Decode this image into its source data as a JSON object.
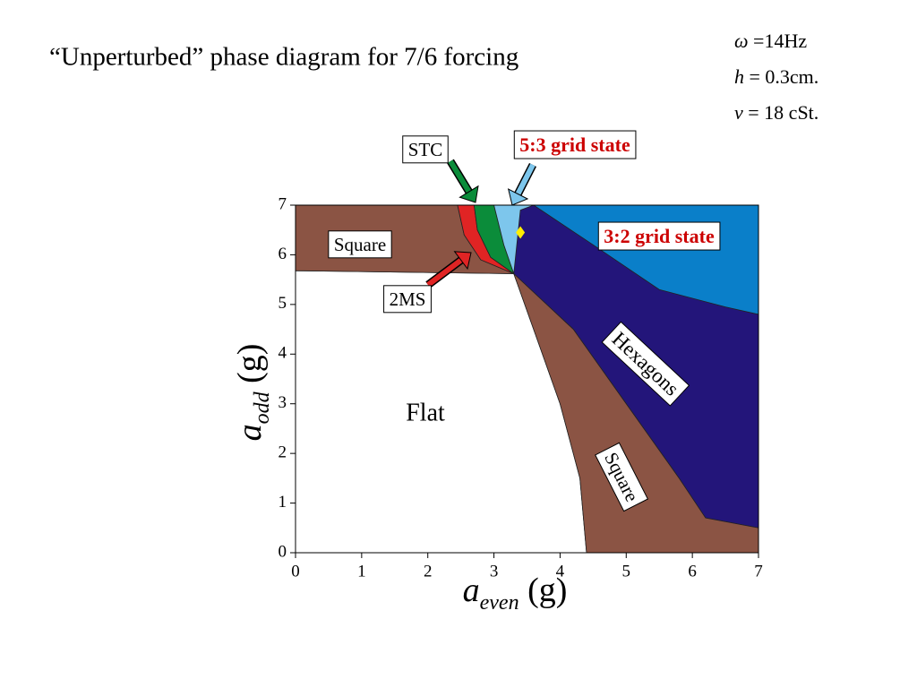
{
  "title": "“Unperturbed” phase diagram for 7/6 forcing",
  "parameters": [
    {
      "symbol": "ω",
      "text": " =14Hz"
    },
    {
      "symbol": "h",
      "text": " = 0.3cm."
    },
    {
      "symbol": "ν",
      "text": " = 18 cSt."
    }
  ],
  "chart_data": {
    "type": "phase",
    "xlabel": {
      "symbol": "a",
      "subscript": "even",
      "unit": " (g)"
    },
    "ylabel": {
      "symbol": "a",
      "subscript": "odd",
      "unit": " (g)"
    },
    "xlim": [
      0,
      7
    ],
    "ylim": [
      0,
      7
    ],
    "xticks": [
      0,
      1,
      2,
      3,
      4,
      5,
      6,
      7
    ],
    "yticks": [
      0,
      1,
      2,
      3,
      4,
      5,
      6,
      7
    ],
    "regions": [
      {
        "label": "Flat",
        "color": "#ffffff",
        "x": [
          0,
          0,
          3.3,
          3.6,
          4.0,
          4.3,
          4.4
        ],
        "y": [
          0,
          5.68,
          5.62,
          4.5,
          3,
          1.5,
          0
        ]
      },
      {
        "label": "Square",
        "color": "#8b5444",
        "x": [
          0,
          3.3,
          2.8,
          2.55,
          2.45,
          0
        ],
        "y": [
          5.68,
          5.62,
          5.9,
          6.4,
          7,
          7
        ]
      },
      {
        "label": "2MS",
        "color": "#e02424",
        "x": [
          2.45,
          2.55,
          2.8,
          3.3,
          2.95,
          2.75,
          2.7
        ],
        "y": [
          7,
          6.4,
          5.9,
          5.62,
          5.95,
          6.5,
          7
        ]
      },
      {
        "label": "STC",
        "color": "#0b8c3a",
        "x": [
          2.7,
          2.75,
          2.95,
          3.3,
          3.15,
          3.0
        ],
        "y": [
          7,
          6.5,
          5.95,
          5.62,
          6.2,
          7
        ]
      },
      {
        "label": "5:3 grid state",
        "color": "#7dc6ec",
        "x": [
          3.0,
          3.15,
          3.3,
          3.45,
          3.6
        ],
        "y": [
          7,
          6.2,
          5.62,
          6.8,
          7
        ]
      },
      {
        "label": "Hexagons",
        "color": "#23157a",
        "x": [
          3.3,
          3.4,
          3.6,
          7,
          7,
          6.2,
          5.8,
          5.0,
          4.2
        ],
        "y": [
          5.62,
          6.9,
          7,
          7,
          0.5,
          0.7,
          1.5,
          3.0,
          4.5
        ]
      },
      {
        "label": "3:2 grid state",
        "color": "#0a7fc9",
        "x": [
          3.6,
          4.5,
          5.5,
          6.5,
          7,
          7
        ],
        "y": [
          7,
          6.2,
          5.3,
          4.95,
          4.8,
          7
        ]
      },
      {
        "label": "Square",
        "color": "#8b5444",
        "x": [
          3.3,
          4.2,
          5.0,
          5.8,
          6.2,
          7,
          7,
          4.4,
          4.3,
          4.0,
          3.6
        ],
        "y": [
          5.62,
          4.5,
          3.0,
          1.5,
          0.7,
          0.5,
          0,
          0,
          1.5,
          3,
          4.5
        ]
      }
    ],
    "marker": {
      "x": 3.4,
      "y": 6.45,
      "color": "#ffee00"
    }
  }
}
